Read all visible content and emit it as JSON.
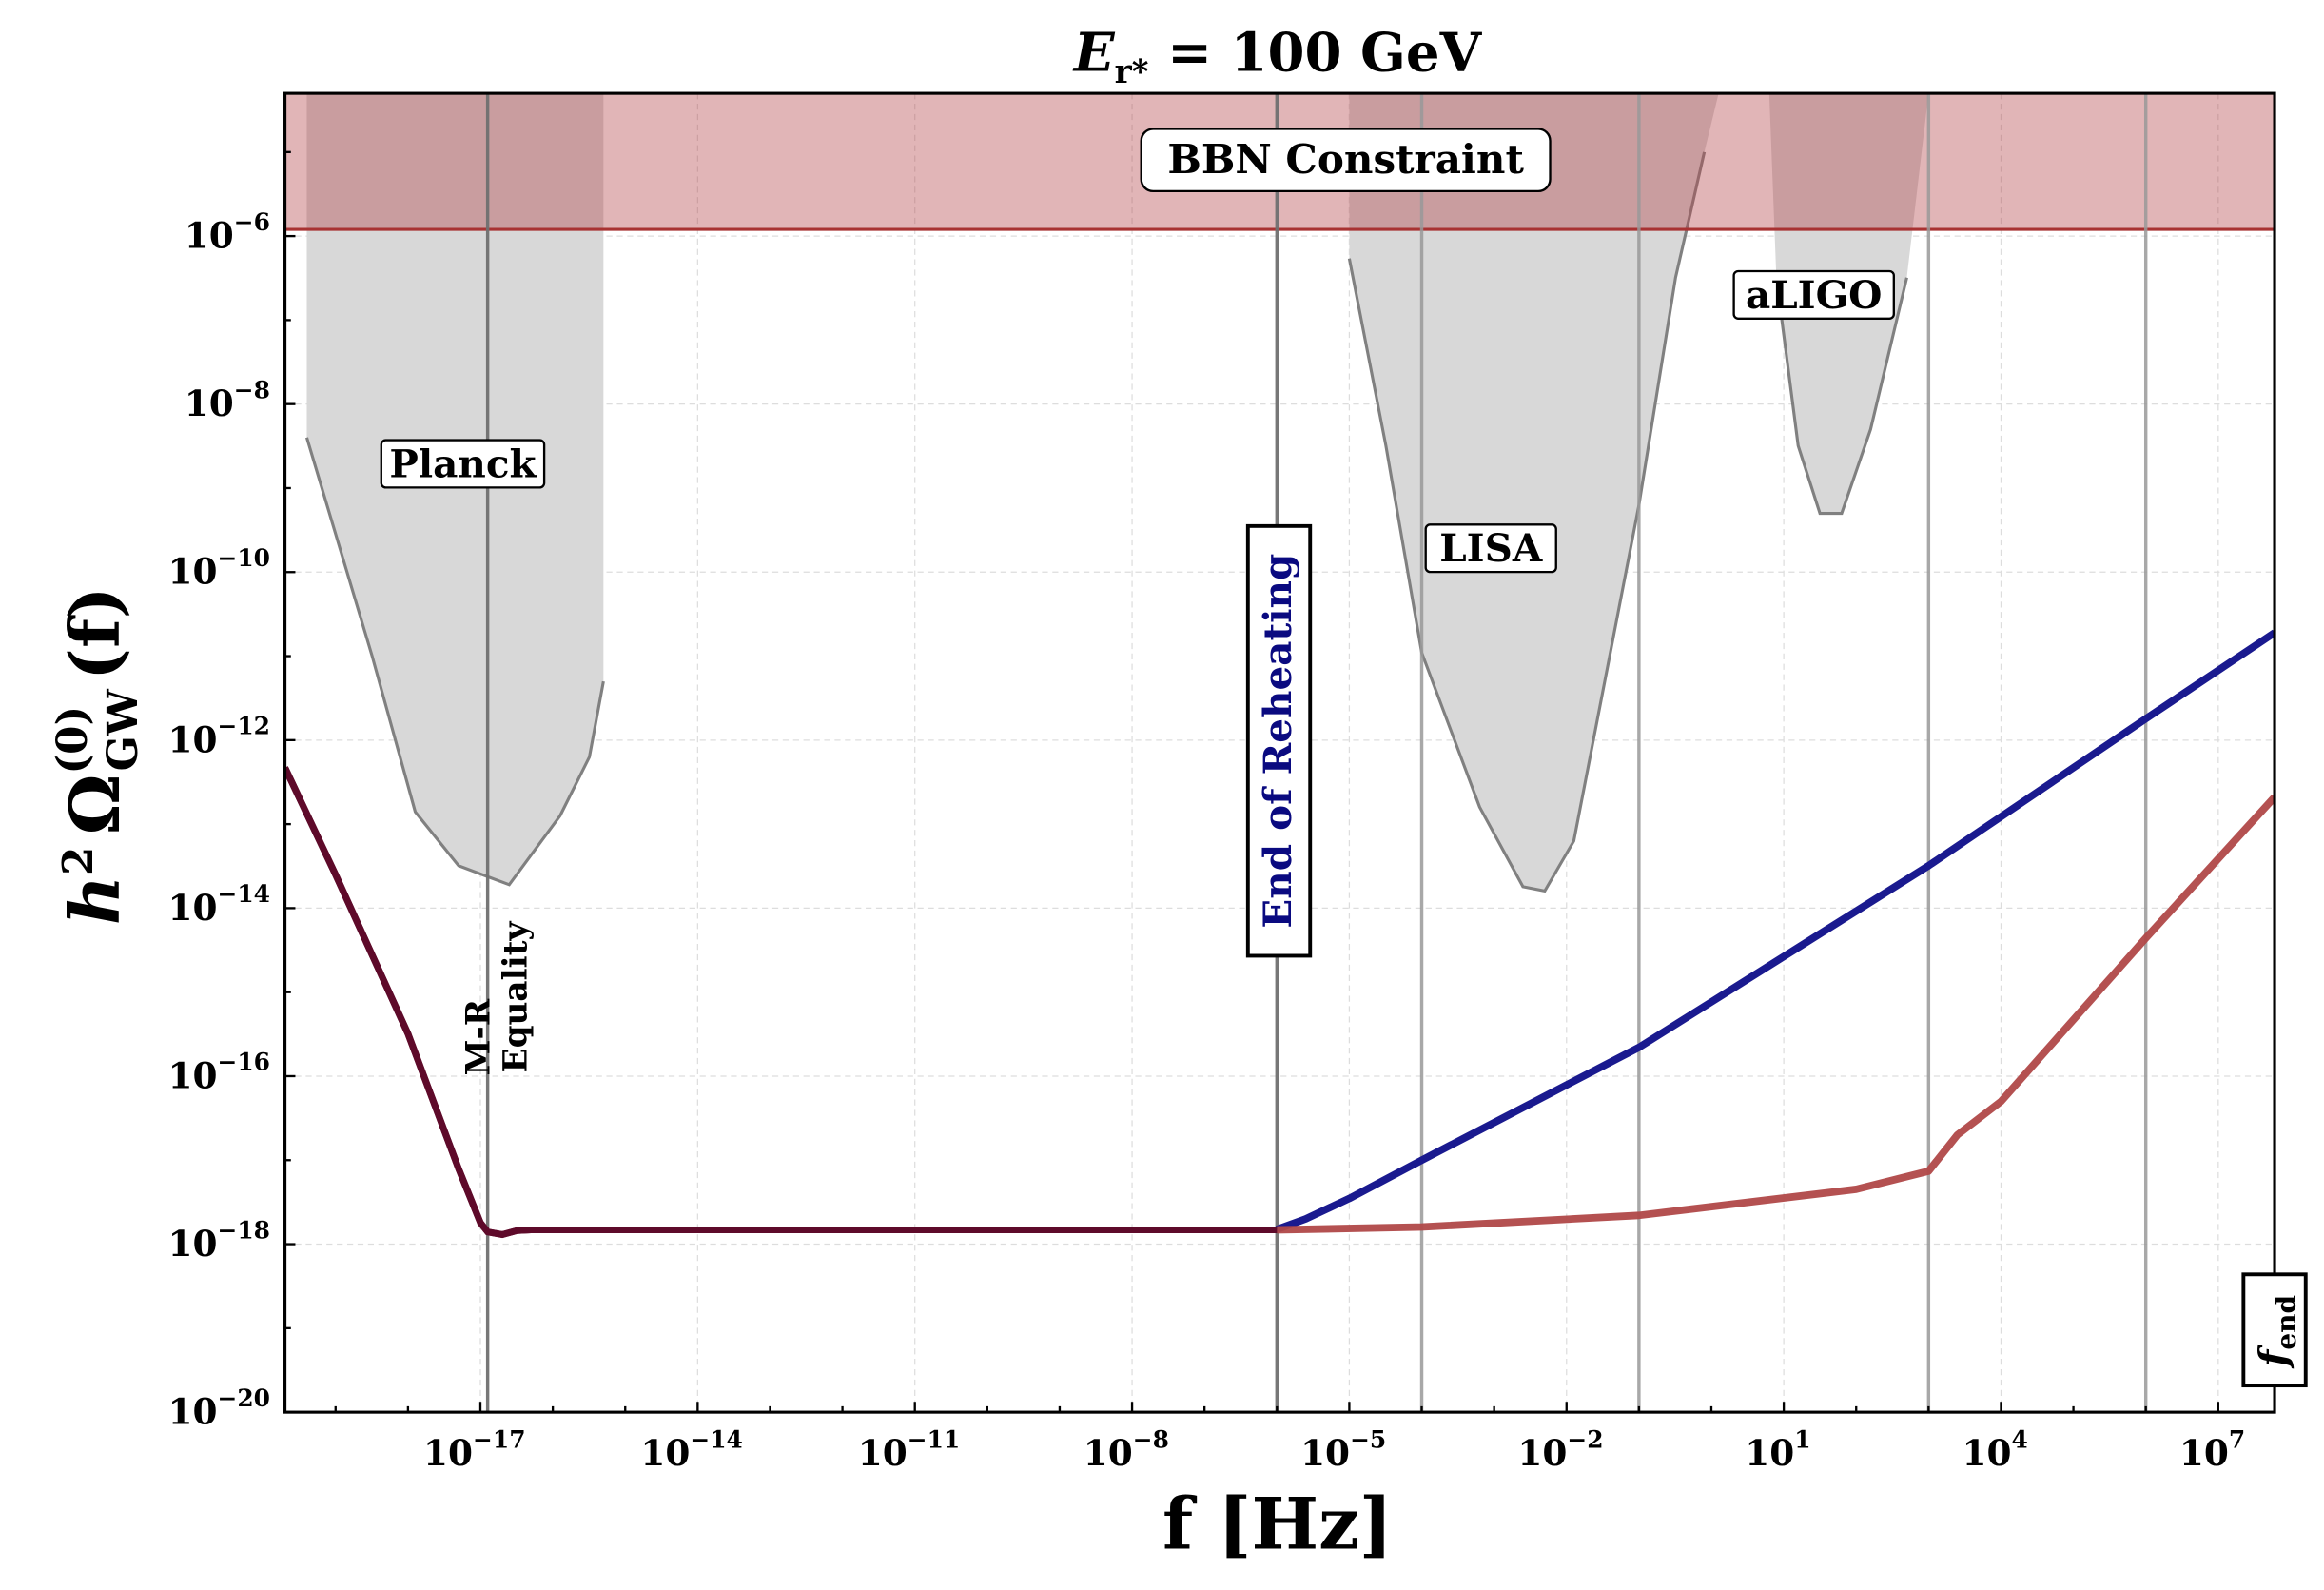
{
  "chart_data": {
    "type": "line",
    "title": "E_r* = 100 GeV",
    "title_parts": {
      "main": "E",
      "sub": "r*",
      "rest": " = 100 GeV"
    },
    "xlabel": "f [Hz]",
    "ylabel": "h² Ω_GW^(0)(f)",
    "ylabel_parts": {
      "h": "h",
      "sup2": "2",
      "omega": "Ω",
      "sup": "(0)",
      "sub": "GW",
      "rest": "(f)"
    },
    "xscale": "log",
    "yscale": "log",
    "xlim": [
      2e-20,
      60000000.0
    ],
    "ylim": [
      1e-20,
      5e-05
    ],
    "grid": true,
    "x_tick_labels": [
      {
        "exp": -17,
        "label": "10^-17"
      },
      {
        "exp": -14,
        "label": "10^-14"
      },
      {
        "exp": -11,
        "label": "10^-11"
      },
      {
        "exp": -8,
        "label": "10^-8"
      },
      {
        "exp": -5,
        "label": "10^-5"
      },
      {
        "exp": -2,
        "label": "10^-2"
      },
      {
        "exp": 1,
        "label": "10^1"
      },
      {
        "exp": 4,
        "label": "10^4"
      },
      {
        "exp": 7,
        "label": "10^7"
      }
    ],
    "y_tick_labels": [
      {
        "exp": -6,
        "label": "10^-6"
      },
      {
        "exp": -8,
        "label": "10^-8"
      },
      {
        "exp": -10,
        "label": "10^-10"
      },
      {
        "exp": -12,
        "label": "10^-12"
      },
      {
        "exp": -14,
        "label": "10^-14"
      },
      {
        "exp": -16,
        "label": "10^-16"
      },
      {
        "exp": -18,
        "label": "10^-18"
      },
      {
        "exp": -20,
        "label": "10^-20"
      }
    ],
    "series": [
      {
        "color": "#5e0a2a",
        "x": [
          2e-20,
          1e-19,
          1e-18,
          5e-18,
          1e-17,
          1.26e-17,
          2e-17,
          3.2e-17,
          5e-17,
          3.2e-07,
          1e-06
        ],
        "y": [
          4.7e-13,
          2.5e-14,
          3.2e-16,
          7.9e-18,
          1.8e-18,
          1.4e-18,
          1.3e-18,
          1.45e-18,
          1.48e-18,
          1.48e-18,
          1.48e-18
        ]
      },
      {
        "color": "#1a1a8f",
        "x": [
          1e-06,
          2.5e-06,
          1e-05,
          0.0001,
          0.1,
          1000.0,
          1000000.0,
          60000000.0
        ],
        "y": [
          1.5e-18,
          2e-18,
          3.5e-18,
          1e-17,
          2.2e-16,
          3.2e-14,
          1.8e-12,
          1.9e-11
        ]
      },
      {
        "color": "#b04848",
        "x": [
          1e-06,
          0.0001,
          0.1,
          100.0,
          1000.0,
          2500.0,
          10000.0,
          1000000.0,
          60000000.0
        ],
        "y": [
          1.48e-18,
          1.6e-18,
          2.2e-18,
          4.5e-18,
          7.4e-18,
          2e-17,
          5e-17,
          4.4e-15,
          2.1e-13
        ]
      }
    ],
    "bbn_constraint": {
      "label": "BBN Constraint",
      "ymin": 1.2e-06,
      "color": "#b5454a"
    },
    "sensitivity_regions": [
      {
        "label": "Planck",
        "x": [
          4e-20,
          4e-20,
          3.2e-19,
          1.26e-18,
          5e-18,
          2.5e-17,
          1.26e-16,
          3.2e-16,
          5e-16,
          5e-16
        ],
        "y": [
          5e-05,
          4e-09,
          1e-11,
          1.4e-13,
          3.2e-14,
          1.9e-14,
          1.26e-13,
          6.3e-13,
          5e-12,
          5e-05
        ]
      },
      {
        "label": "LISA",
        "x": [
          1e-05,
          1e-05,
          3.2e-05,
          0.0001,
          0.00063,
          0.0025,
          0.005,
          0.0126,
          0.1,
          0.32,
          0.8,
          1.26
        ],
        "y": [
          5e-05,
          5.4e-07,
          3.2e-09,
          1.1e-11,
          1.6e-13,
          1.8e-14,
          1.6e-14,
          6.3e-14,
          6.3e-10,
          3.2e-07,
          1e-05,
          5e-05
        ]
      },
      {
        "label": "aLIGO",
        "x": [
          6.3,
          7.9,
          15.8,
          31.6,
          63,
          158,
          500,
          1000
        ],
        "y": [
          5e-05,
          3.2e-07,
          3.2e-09,
          5e-10,
          5e-10,
          5e-09,
          3.2e-07,
          5e-05
        ]
      }
    ],
    "vertical_lines": [
      {
        "x": 1.26e-17,
        "label": "M-R Equality",
        "label_lines": [
          "M-R",
          "Equality"
        ]
      },
      {
        "x": 1e-06,
        "label": "End of Reheating",
        "label_color": "#0a0a80"
      },
      {
        "x": 0.0001
      },
      {
        "x": 0.1
      },
      {
        "x": 1000.0
      },
      {
        "x": 1000000.0
      },
      {
        "x": 60000000.0,
        "label": "f_end",
        "label_parts": {
          "f": "f",
          "sub": "end"
        }
      }
    ]
  }
}
